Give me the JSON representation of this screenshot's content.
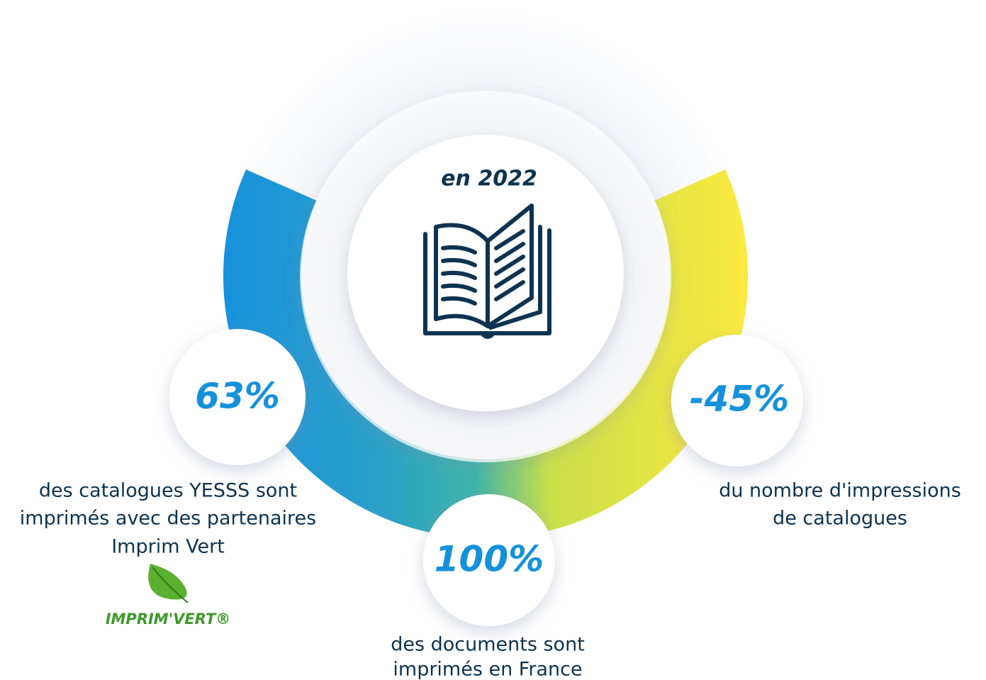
{
  "header": {
    "title": "en 2022"
  },
  "stats": [
    {
      "value": "63%",
      "lines": [
        "des catalogues YESSS sont",
        "imprimés avec des partenaires",
        "Imprim Vert"
      ]
    },
    {
      "value": "100%",
      "lines": [
        "des documents sont",
        "imprimés en France"
      ]
    },
    {
      "value": "-45%",
      "lines": [
        "du nombre d'impressions",
        "de catalogues"
      ]
    }
  ],
  "logo": {
    "label": "IMPRIM'VERT®"
  }
}
